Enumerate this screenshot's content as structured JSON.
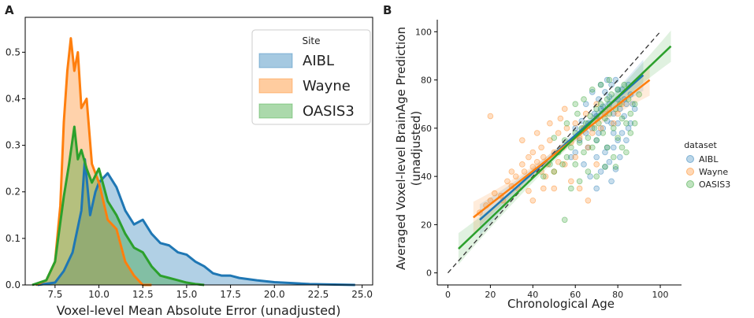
{
  "chart_data": [
    {
      "panel": "A",
      "type": "area",
      "xlabel": "Voxel-level Mean Absolute Error (unadjusted)",
      "ylabel": "",
      "xlim": [
        5.8,
        25.6
      ],
      "ylim": [
        0,
        0.575
      ],
      "xticks": [
        "7.5",
        "10.0",
        "12.5",
        "15.0",
        "17.5",
        "20.0",
        "22.5",
        "25.0"
      ],
      "yticks": [
        "0.0",
        "0.1",
        "0.2",
        "0.3",
        "0.4",
        "0.5"
      ],
      "legend": {
        "title": "Site",
        "position": "top-right",
        "entries": [
          "AIBL",
          "Wayne",
          "OASIS3"
        ]
      },
      "series": [
        {
          "name": "AIBL",
          "color": "#1f77b4",
          "x": [
            6.5,
            7.5,
            8.0,
            8.5,
            9.0,
            9.2,
            9.5,
            9.8,
            10.0,
            10.5,
            11.0,
            11.5,
            12.0,
            12.5,
            13.0,
            13.5,
            14.0,
            14.5,
            15.0,
            15.5,
            16.0,
            16.5,
            17.0,
            17.5,
            18.0,
            19.0,
            20.0,
            21.0,
            22.0,
            24.6
          ],
          "y": [
            0.0,
            0.005,
            0.03,
            0.07,
            0.16,
            0.27,
            0.15,
            0.2,
            0.22,
            0.24,
            0.21,
            0.16,
            0.13,
            0.14,
            0.11,
            0.09,
            0.085,
            0.07,
            0.065,
            0.05,
            0.04,
            0.025,
            0.02,
            0.02,
            0.015,
            0.01,
            0.006,
            0.004,
            0.002,
            0.0
          ]
        },
        {
          "name": "Wayne",
          "color": "#ff7f0e",
          "x": [
            6.4,
            7.0,
            7.5,
            7.8,
            8.0,
            8.2,
            8.4,
            8.6,
            8.8,
            9.0,
            9.3,
            9.6,
            10.0,
            10.5,
            11.0,
            11.5,
            12.0,
            12.5,
            13.0
          ],
          "y": [
            0.0,
            0.01,
            0.05,
            0.17,
            0.35,
            0.46,
            0.53,
            0.46,
            0.5,
            0.38,
            0.4,
            0.26,
            0.22,
            0.14,
            0.12,
            0.05,
            0.02,
            0.0,
            0.0
          ]
        },
        {
          "name": "OASIS3",
          "color": "#2ca02c",
          "x": [
            6.2,
            7.0,
            7.5,
            8.0,
            8.3,
            8.6,
            8.8,
            9.0,
            9.3,
            9.6,
            10.0,
            10.5,
            11.0,
            11.5,
            12.0,
            12.5,
            13.0,
            13.5,
            14.0,
            14.5,
            15.0,
            15.5,
            16.0
          ],
          "y": [
            0.0,
            0.01,
            0.05,
            0.19,
            0.26,
            0.34,
            0.27,
            0.29,
            0.25,
            0.22,
            0.25,
            0.18,
            0.15,
            0.11,
            0.08,
            0.07,
            0.04,
            0.02,
            0.015,
            0.01,
            0.005,
            0.002,
            0.0
          ]
        }
      ]
    },
    {
      "panel": "B",
      "type": "scatter",
      "xlabel": "Chronological Age",
      "ylabel": "Averaged Voxel-level BrainAge Prediction\n(unadjusted)",
      "xlim": [
        -5,
        110
      ],
      "ylim": [
        -5,
        105
      ],
      "xticks": [
        "0",
        "20",
        "40",
        "60",
        "80",
        "100"
      ],
      "yticks": [
        "0",
        "20",
        "40",
        "60",
        "80",
        "100"
      ],
      "legend": {
        "title": "dataset",
        "position": "right",
        "entries": [
          "AIBL",
          "Wayne",
          "OASIS3"
        ]
      },
      "identity_line": {
        "from": [
          0,
          0
        ],
        "to": [
          100,
          100
        ],
        "style": "dashed"
      },
      "series": [
        {
          "name": "AIBL",
          "color": "#1f77b4",
          "points": [
            [
              60,
              50
            ],
            [
              62,
              55
            ],
            [
              65,
              58
            ],
            [
              66,
              62
            ],
            [
              68,
              60
            ],
            [
              70,
              65
            ],
            [
              70,
              55
            ],
            [
              71,
              72
            ],
            [
              72,
              68
            ],
            [
              73,
              60
            ],
            [
              74,
              75
            ],
            [
              75,
              63
            ],
            [
              75,
              52
            ],
            [
              76,
              70
            ],
            [
              77,
              78
            ],
            [
              78,
              66
            ],
            [
              78,
              58
            ],
            [
              79,
              80
            ],
            [
              80,
              72
            ],
            [
              80,
              62
            ],
            [
              81,
              68
            ],
            [
              82,
              76
            ],
            [
              83,
              65
            ],
            [
              84,
              70
            ],
            [
              85,
              60
            ],
            [
              86,
              74
            ],
            [
              88,
              68
            ],
            [
              64,
              45
            ],
            [
              67,
              40
            ],
            [
              70,
              48
            ],
            [
              72,
              42
            ],
            [
              74,
              50
            ],
            [
              76,
              46
            ],
            [
              78,
              52
            ],
            [
              80,
              55
            ],
            [
              82,
              58
            ],
            [
              65,
              70
            ],
            [
              68,
              75
            ],
            [
              72,
              78
            ],
            [
              75,
              80
            ],
            [
              77,
              38
            ],
            [
              79,
              43
            ],
            [
              81,
              48
            ],
            [
              84,
              55
            ],
            [
              86,
              62
            ],
            [
              63,
              63
            ],
            [
              69,
              66
            ],
            [
              73,
              69
            ],
            [
              76,
              73
            ],
            [
              80,
              76
            ],
            [
              70,
              35
            ],
            [
              74,
              44
            ],
            [
              87,
              70
            ],
            [
              85,
              78
            ],
            [
              58,
              48
            ],
            [
              60,
              60
            ],
            [
              66,
              52
            ],
            [
              71,
              58
            ],
            [
              77,
              62
            ],
            [
              83,
              72
            ]
          ],
          "regression": {
            "x_start": 15,
            "x_end": 92,
            "y_start": 22,
            "y_end": 82
          }
        },
        {
          "name": "Wayne",
          "color": "#ff7f0e",
          "points": [
            [
              20,
              65
            ],
            [
              15,
              25
            ],
            [
              18,
              28
            ],
            [
              20,
              30
            ],
            [
              22,
              33
            ],
            [
              25,
              32
            ],
            [
              28,
              38
            ],
            [
              30,
              36
            ],
            [
              30,
              42
            ],
            [
              32,
              40
            ],
            [
              35,
              45
            ],
            [
              36,
              42
            ],
            [
              38,
              48
            ],
            [
              40,
              44
            ],
            [
              40,
              50
            ],
            [
              42,
              46
            ],
            [
              44,
              52
            ],
            [
              45,
              48
            ],
            [
              46,
              40
            ],
            [
              48,
              55
            ],
            [
              50,
              50
            ],
            [
              50,
              42
            ],
            [
              52,
              58
            ],
            [
              54,
              52
            ],
            [
              55,
              45
            ],
            [
              56,
              60
            ],
            [
              58,
              54
            ],
            [
              60,
              62
            ],
            [
              60,
              48
            ],
            [
              62,
              56
            ],
            [
              64,
              60
            ],
            [
              65,
              66
            ],
            [
              66,
              52
            ],
            [
              68,
              58
            ],
            [
              70,
              64
            ],
            [
              70,
              70
            ],
            [
              72,
              60
            ],
            [
              74,
              66
            ],
            [
              76,
              68
            ],
            [
              78,
              62
            ],
            [
              80,
              66
            ],
            [
              82,
              70
            ],
            [
              40,
              30
            ],
            [
              45,
              35
            ],
            [
              50,
              35
            ],
            [
              35,
              55
            ],
            [
              42,
              58
            ],
            [
              48,
              62
            ],
            [
              55,
              68
            ],
            [
              62,
              35
            ],
            [
              38,
              34
            ],
            [
              44,
              42
            ],
            [
              52,
              46
            ],
            [
              58,
              38
            ],
            [
              66,
              30
            ],
            [
              70,
              45
            ],
            [
              26,
              30
            ],
            [
              33,
              35
            ],
            [
              47,
              45
            ],
            [
              53,
              64
            ]
          ],
          "regression": {
            "x_start": 12,
            "x_end": 95,
            "y_start": 23,
            "y_end": 80
          }
        },
        {
          "name": "OASIS3",
          "color": "#2ca02c",
          "points": [
            [
              45,
              40
            ],
            [
              48,
              45
            ],
            [
              50,
              42
            ],
            [
              52,
              50
            ],
            [
              54,
              45
            ],
            [
              55,
              55
            ],
            [
              56,
              48
            ],
            [
              58,
              52
            ],
            [
              60,
              58
            ],
            [
              60,
              45
            ],
            [
              62,
              54
            ],
            [
              63,
              60
            ],
            [
              64,
              50
            ],
            [
              65,
              62
            ],
            [
              66,
              56
            ],
            [
              67,
              65
            ],
            [
              68,
              52
            ],
            [
              69,
              60
            ],
            [
              70,
              68
            ],
            [
              70,
              55
            ],
            [
              71,
              62
            ],
            [
              72,
              70
            ],
            [
              73,
              58
            ],
            [
              74,
              64
            ],
            [
              75,
              72
            ],
            [
              75,
              52
            ],
            [
              76,
              66
            ],
            [
              77,
              74
            ],
            [
              78,
              60
            ],
            [
              79,
              68
            ],
            [
              80,
              76
            ],
            [
              80,
              56
            ],
            [
              81,
              70
            ],
            [
              82,
              64
            ],
            [
              83,
              78
            ],
            [
              84,
              62
            ],
            [
              85,
              72
            ],
            [
              86,
              66
            ],
            [
              88,
              70
            ],
            [
              90,
              74
            ],
            [
              55,
              22
            ],
            [
              58,
              35
            ],
            [
              62,
              38
            ],
            [
              66,
              42
            ],
            [
              70,
              40
            ],
            [
              74,
              44
            ],
            [
              78,
              48
            ],
            [
              82,
              52
            ],
            [
              86,
              58
            ],
            [
              60,
              70
            ],
            [
              64,
              72
            ],
            [
              68,
              76
            ],
            [
              72,
              78
            ],
            [
              76,
              80
            ],
            [
              50,
              56
            ],
            [
              56,
              62
            ],
            [
              61,
              66
            ],
            [
              79,
              44
            ],
            [
              84,
              50
            ],
            [
              88,
              62
            ]
          ],
          "regression": {
            "x_start": 5,
            "x_end": 105,
            "y_start": 10,
            "y_end": 94
          }
        }
      ]
    }
  ],
  "panel_labels": {
    "a": "A",
    "b": "B"
  }
}
